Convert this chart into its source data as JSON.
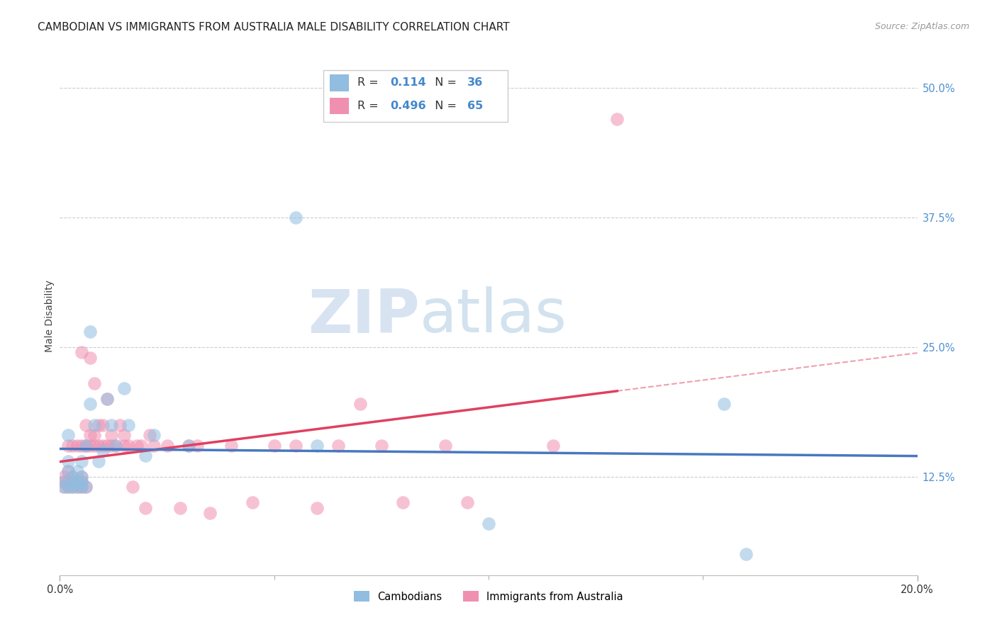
{
  "title": "CAMBODIAN VS IMMIGRANTS FROM AUSTRALIA MALE DISABILITY CORRELATION CHART",
  "source": "Source: ZipAtlas.com",
  "ylabel": "Male Disability",
  "watermark_zip": "ZIP",
  "watermark_atlas": "atlas",
  "xlim": [
    0.0,
    0.2
  ],
  "ylim": [
    0.03,
    0.53
  ],
  "yticks": [
    0.125,
    0.25,
    0.375,
    0.5
  ],
  "ytick_labels": [
    "12.5%",
    "25.0%",
    "37.5%",
    "50.0%"
  ],
  "xtick_labels": [
    "0.0%",
    "20.0%"
  ],
  "xticks": [
    0.0,
    0.2
  ],
  "minor_xticks": [
    0.05,
    0.1,
    0.15
  ],
  "gridline_y": [
    0.125,
    0.25,
    0.375,
    0.5
  ],
  "cambodian_x": [
    0.001,
    0.001,
    0.002,
    0.002,
    0.002,
    0.003,
    0.003,
    0.003,
    0.004,
    0.004,
    0.004,
    0.005,
    0.005,
    0.005,
    0.005,
    0.006,
    0.006,
    0.007,
    0.007,
    0.008,
    0.009,
    0.01,
    0.011,
    0.012,
    0.013,
    0.015,
    0.016,
    0.02,
    0.022,
    0.03,
    0.055,
    0.06,
    0.1,
    0.155,
    0.16,
    0.002
  ],
  "cambodian_y": [
    0.115,
    0.12,
    0.13,
    0.14,
    0.115,
    0.12,
    0.125,
    0.115,
    0.12,
    0.13,
    0.115,
    0.115,
    0.12,
    0.125,
    0.14,
    0.115,
    0.155,
    0.195,
    0.265,
    0.175,
    0.14,
    0.15,
    0.2,
    0.175,
    0.155,
    0.21,
    0.175,
    0.145,
    0.165,
    0.155,
    0.375,
    0.155,
    0.08,
    0.195,
    0.05,
    0.165
  ],
  "australia_x": [
    0.001,
    0.001,
    0.001,
    0.002,
    0.002,
    0.002,
    0.002,
    0.003,
    0.003,
    0.003,
    0.003,
    0.004,
    0.004,
    0.004,
    0.005,
    0.005,
    0.005,
    0.005,
    0.005,
    0.006,
    0.006,
    0.006,
    0.007,
    0.007,
    0.007,
    0.008,
    0.008,
    0.008,
    0.009,
    0.009,
    0.01,
    0.01,
    0.011,
    0.011,
    0.012,
    0.012,
    0.013,
    0.014,
    0.015,
    0.015,
    0.016,
    0.017,
    0.018,
    0.019,
    0.02,
    0.021,
    0.022,
    0.025,
    0.028,
    0.03,
    0.032,
    0.035,
    0.04,
    0.045,
    0.05,
    0.055,
    0.06,
    0.065,
    0.07,
    0.075,
    0.08,
    0.09,
    0.095,
    0.115,
    0.13
  ],
  "australia_y": [
    0.115,
    0.12,
    0.125,
    0.115,
    0.12,
    0.13,
    0.155,
    0.115,
    0.12,
    0.125,
    0.155,
    0.115,
    0.12,
    0.155,
    0.115,
    0.12,
    0.125,
    0.155,
    0.245,
    0.115,
    0.155,
    0.175,
    0.155,
    0.165,
    0.24,
    0.155,
    0.165,
    0.215,
    0.155,
    0.175,
    0.155,
    0.175,
    0.155,
    0.2,
    0.155,
    0.165,
    0.155,
    0.175,
    0.155,
    0.165,
    0.155,
    0.115,
    0.155,
    0.155,
    0.095,
    0.165,
    0.155,
    0.155,
    0.095,
    0.155,
    0.155,
    0.09,
    0.155,
    0.1,
    0.155,
    0.155,
    0.095,
    0.155,
    0.195,
    0.155,
    0.1,
    0.155,
    0.1,
    0.155,
    0.47
  ],
  "cambodian_color": "#90bde0",
  "australia_color": "#f090b0",
  "cambodian_line_color": "#4878c0",
  "australia_line_color": "#e04060",
  "background_color": "#ffffff",
  "grid_color": "#cccccc",
  "title_fontsize": 11,
  "axis_label_fontsize": 10,
  "tick_fontsize": 10.5,
  "right_tick_color": "#5090d0",
  "point_size": 180,
  "point_alpha": 0.55
}
